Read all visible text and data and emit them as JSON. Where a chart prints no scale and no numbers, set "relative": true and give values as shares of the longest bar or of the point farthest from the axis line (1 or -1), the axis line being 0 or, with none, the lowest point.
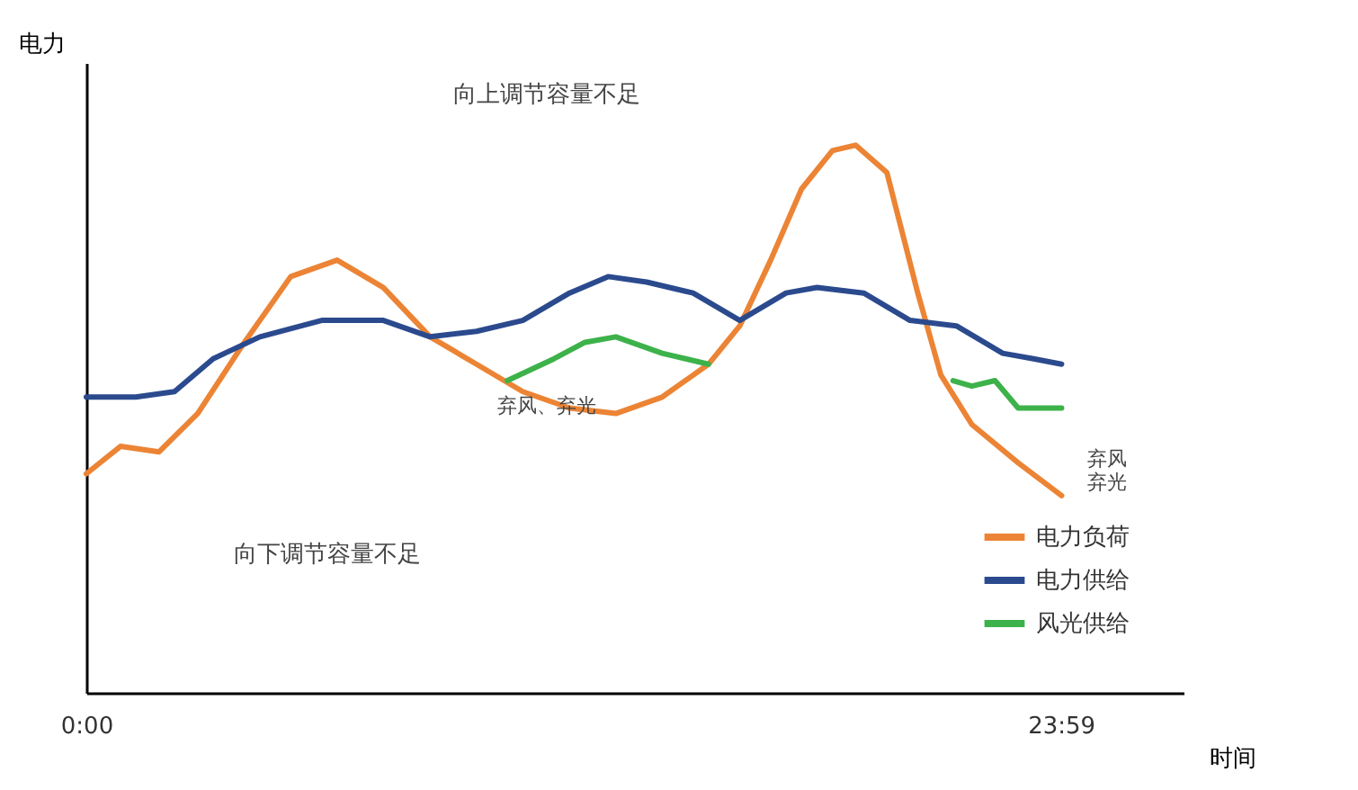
{
  "chart_data": {
    "type": "line",
    "relative": true,
    "xlabel": "时间",
    "ylabel": "电力",
    "xlim": [
      0,
      27
    ],
    "xticks": [
      {
        "value": 0,
        "label": "0:00"
      },
      {
        "value": 23.983,
        "label": "23:59"
      }
    ],
    "grid": false,
    "legend": "bottom right",
    "marker": "none",
    "line_style": "solid",
    "annotations": [
      "向上调节容量不足",
      "向下调节容量不足",
      "弃风、弃光",
      "弃风弃光"
    ],
    "series": [
      {
        "name": "电力负荷",
        "color": "#ec8435",
        "x": [
          0,
          0.84,
          1.79,
          2.74,
          3.89,
          5.03,
          6.17,
          7.31,
          8.46,
          9.6,
          10.74,
          11.89,
          13.03,
          14.17,
          15.31,
          16.08,
          16.84,
          17.6,
          18.36,
          18.93,
          19.7,
          20.46,
          21.03,
          21.79,
          22.93,
          24
        ],
        "values": [
          0.4,
          0.45,
          0.44,
          0.51,
          0.64,
          0.76,
          0.79,
          0.74,
          0.65,
          0.6,
          0.55,
          0.52,
          0.51,
          0.54,
          0.6,
          0.67,
          0.79,
          0.92,
          0.99,
          1,
          0.95,
          0.73,
          0.58,
          0.49,
          0.42,
          0.36
        ]
      },
      {
        "name": "电力供给",
        "color": "#2b4a8e",
        "x": [
          0,
          1.22,
          2.17,
          3.12,
          4.27,
          5.79,
          7.31,
          8.46,
          9.6,
          10.74,
          11.89,
          12.84,
          13.79,
          14.93,
          16.08,
          17.22,
          17.98,
          19.13,
          20.27,
          21.41,
          22.55,
          23.31,
          24
        ],
        "values": [
          0.54,
          0.54,
          0.55,
          0.61,
          0.65,
          0.68,
          0.68,
          0.65,
          0.66,
          0.68,
          0.73,
          0.76,
          0.75,
          0.73,
          0.68,
          0.73,
          0.74,
          0.73,
          0.68,
          0.67,
          0.62,
          0.61,
          0.6
        ]
      },
      {
        "name": "风光供给",
        "color": "#3db24a",
        "x": [
          10.36,
          11.51,
          12.27,
          13.03,
          14.17,
          15.31,
          18,
          21.33,
          21.79,
          22.36,
          22.93,
          24
        ],
        "values": [
          0.57,
          0.61,
          0.64,
          0.65,
          0.62,
          0.6,
          null,
          0.57,
          0.56,
          0.57,
          0.52,
          0.52
        ]
      }
    ]
  }
}
